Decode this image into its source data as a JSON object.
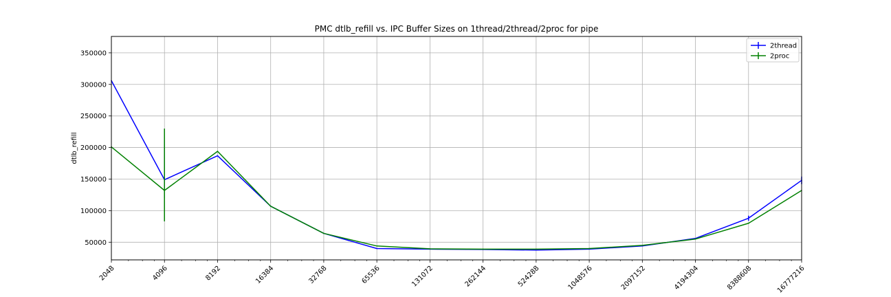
{
  "chart_data": {
    "type": "line",
    "title": "PMC dtlb_refill vs. IPC Buffer Sizes on 1thread/2thread/2proc for pipe",
    "xlabel": "",
    "ylabel": "dtlb_refill",
    "x_scale": "log2",
    "x": [
      2048,
      4096,
      8192,
      16384,
      32768,
      65536,
      131072,
      262144,
      524288,
      1048576,
      2097152,
      4194304,
      8388608,
      16777216
    ],
    "x_tick_labels": [
      "2048",
      "4096",
      "8192",
      "16384",
      "32768",
      "65536",
      "131072",
      "262144",
      "524288",
      "1048576",
      "2097152",
      "4194304",
      "8388608",
      "16777216"
    ],
    "xlim": [
      2048,
      16777216
    ],
    "ylim": [
      22000,
      376000
    ],
    "y_ticks": [
      50000,
      100000,
      150000,
      200000,
      250000,
      300000,
      350000
    ],
    "y_tick_labels": [
      "50000",
      "100000",
      "150000",
      "200000",
      "250000",
      "300000",
      "350000"
    ],
    "grid": true,
    "legend_position": "top-right",
    "series": [
      {
        "name": "2thread",
        "color": "#0000ff",
        "values": [
          306000,
          149000,
          187000,
          107000,
          64000,
          40000,
          39000,
          38500,
          37500,
          39000,
          44000,
          56000,
          88000,
          148000
        ],
        "error_low": [
          null,
          120000,
          null,
          null,
          null,
          null,
          null,
          null,
          null,
          null,
          null,
          null,
          84000,
          142000
        ],
        "error_high": [
          null,
          212000,
          null,
          null,
          null,
          null,
          null,
          null,
          null,
          null,
          null,
          null,
          92000,
          154000
        ]
      },
      {
        "name": "2proc",
        "color": "#008000",
        "values": [
          201000,
          132000,
          194000,
          107000,
          64000,
          44000,
          39500,
          39000,
          39000,
          40000,
          45000,
          55000,
          80000,
          132000
        ],
        "error_low": [
          null,
          83000,
          null,
          null,
          null,
          null,
          null,
          null,
          null,
          null,
          null,
          null,
          null,
          null
        ],
        "error_high": [
          null,
          230000,
          null,
          null,
          null,
          null,
          null,
          null,
          null,
          null,
          null,
          null,
          null,
          null
        ]
      }
    ]
  }
}
